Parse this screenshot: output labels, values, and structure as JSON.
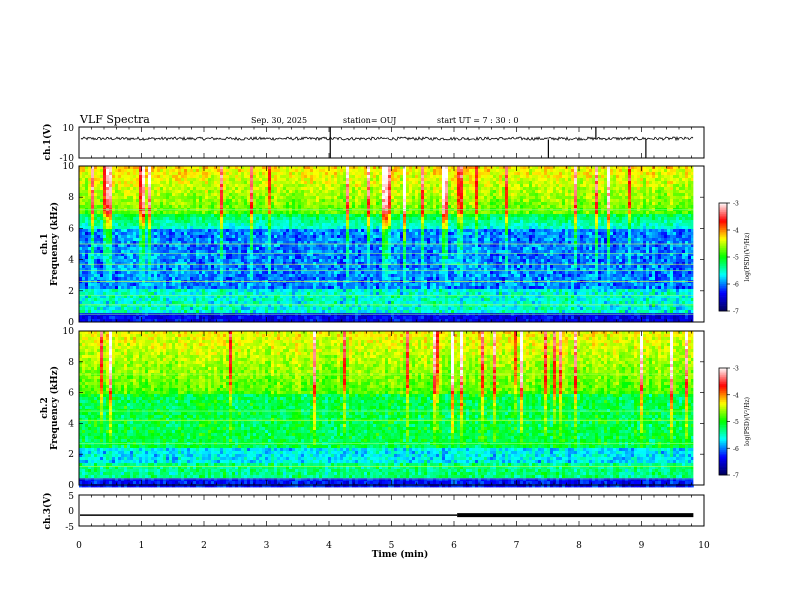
{
  "header": {
    "title": "VLF Spectra",
    "date": "Sep. 30, 2025",
    "station": "station= OUJ",
    "start": "start  UT =   7 : 30 : 0"
  },
  "chart_data": [
    {
      "type": "line",
      "panel": "ch1-waveform",
      "ylabel": "ch.1(V)",
      "ylim": [
        -10,
        10
      ],
      "yticks": [
        10,
        -10
      ],
      "x_range": [
        0,
        9.83
      ],
      "baseline": 2.5,
      "noise_amplitude": 1,
      "spikes": [
        {
          "x": 4.02,
          "ymin": -10,
          "ymax": 10
        },
        {
          "x": 8.27,
          "ymin": 2,
          "ymax": 10
        },
        {
          "x": 7.51,
          "ymin": -10,
          "ymax": 2
        },
        {
          "x": 9.07,
          "ymin": -10,
          "ymax": 2
        }
      ]
    },
    {
      "type": "heatmap",
      "panel": "ch1-spectrogram",
      "ylabel": "ch.1\nFrequency (kHz)",
      "ylim": [
        0,
        10
      ],
      "yticks": [
        0,
        2,
        4,
        6,
        8,
        10
      ],
      "x_range": [
        0,
        9.83
      ],
      "colorbar": {
        "label": "log(PSD)(V²/Hz)",
        "ticks": [
          -3,
          -4,
          -5,
          -6,
          -7
        ],
        "range": [
          -7,
          -3
        ]
      }
    },
    {
      "type": "heatmap",
      "panel": "ch2-spectrogram",
      "ylabel": "ch.2\nFrequency (kHz)",
      "ylim": [
        0,
        10
      ],
      "yticks": [
        0,
        2,
        4,
        6,
        8,
        10
      ],
      "x_range": [
        0,
        9.83
      ],
      "colorbar": {
        "label": "log(PSD)(V²/Hz)",
        "ticks": [
          -3,
          -4,
          -5,
          -6,
          -7
        ],
        "range": [
          -7,
          -3
        ]
      }
    },
    {
      "type": "line",
      "panel": "ch3-monitor",
      "ylabel": "ch.3(V)",
      "ylim": [
        -5,
        5
      ],
      "yticks": [
        5,
        0,
        -5
      ],
      "x_range": [
        0,
        9.83
      ],
      "value": -1.5,
      "thick_from": 6.05
    }
  ],
  "xaxis": {
    "label": "Time (min)",
    "range": [
      0,
      10
    ],
    "ticks": [
      0,
      1,
      2,
      3,
      4,
      5,
      6,
      7,
      8,
      9,
      10
    ]
  },
  "colors": {
    "colormap": [
      "#00005a",
      "#0000ff",
      "#00ffff",
      "#00ff00",
      "#ffff00",
      "#ff0000",
      "#ffffff"
    ]
  }
}
